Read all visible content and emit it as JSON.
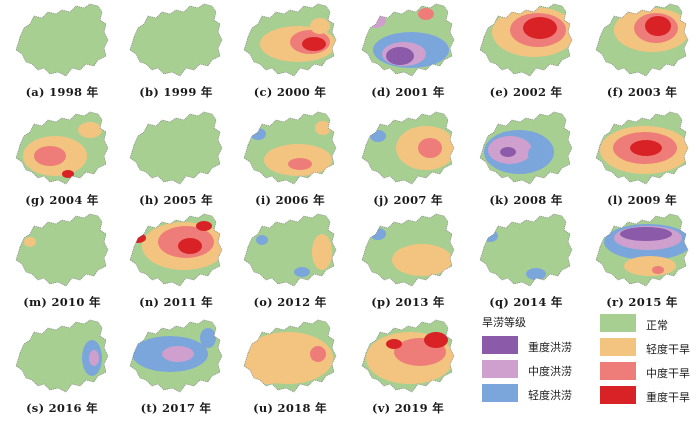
{
  "colors": {
    "severe_flood": "#8b5aa8",
    "moderate_flood": "#cfa0cd",
    "light_flood": "#7aa6dc",
    "normal": "#a8cf92",
    "light_drought": "#f3c47f",
    "moderate_drought": "#ee7d7a",
    "severe_drought": "#d92226"
  },
  "panels": [
    {
      "caption": "(a) 1998 年",
      "patches": []
    },
    {
      "caption": "(b) 1999 年",
      "patches": []
    },
    {
      "caption": "(c) 2000 年",
      "patches": [
        {
          "c": "light_drought",
          "cx": 60,
          "cy": 42,
          "rx": 38,
          "ry": 18
        },
        {
          "c": "moderate_drought",
          "cx": 72,
          "cy": 40,
          "rx": 20,
          "ry": 12
        },
        {
          "c": "severe_drought",
          "cx": 76,
          "cy": 42,
          "rx": 12,
          "ry": 7
        },
        {
          "c": "light_drought",
          "cx": 82,
          "cy": 24,
          "rx": 10,
          "ry": 8
        }
      ]
    },
    {
      "caption": "(d) 2001 年",
      "patches": [
        {
          "c": "light_flood",
          "cx": 55,
          "cy": 48,
          "rx": 38,
          "ry": 18
        },
        {
          "c": "moderate_flood",
          "cx": 48,
          "cy": 52,
          "rx": 22,
          "ry": 12
        },
        {
          "c": "severe_flood",
          "cx": 44,
          "cy": 54,
          "rx": 14,
          "ry": 9
        },
        {
          "c": "moderate_drought",
          "cx": 70,
          "cy": 12,
          "rx": 8,
          "ry": 6
        },
        {
          "c": "moderate_flood",
          "cx": 20,
          "cy": 18,
          "rx": 10,
          "ry": 8
        }
      ]
    },
    {
      "caption": "(e) 2002 年",
      "patches": [
        {
          "c": "light_drought",
          "cx": 60,
          "cy": 30,
          "rx": 42,
          "ry": 25
        },
        {
          "c": "moderate_drought",
          "cx": 64,
          "cy": 28,
          "rx": 28,
          "ry": 17
        },
        {
          "c": "severe_drought",
          "cx": 66,
          "cy": 26,
          "rx": 17,
          "ry": 11
        }
      ]
    },
    {
      "caption": "(f) 2003 年",
      "patches": [
        {
          "c": "light_drought",
          "cx": 62,
          "cy": 28,
          "rx": 38,
          "ry": 22
        },
        {
          "c": "moderate_drought",
          "cx": 66,
          "cy": 26,
          "rx": 22,
          "ry": 15
        },
        {
          "c": "severe_drought",
          "cx": 68,
          "cy": 24,
          "rx": 13,
          "ry": 10
        }
      ]
    },
    {
      "caption": "(g) 2004 年",
      "patches": [
        {
          "c": "light_drought",
          "cx": 45,
          "cy": 46,
          "rx": 32,
          "ry": 20
        },
        {
          "c": "moderate_drought",
          "cx": 40,
          "cy": 46,
          "rx": 16,
          "ry": 10
        },
        {
          "c": "light_drought",
          "cx": 80,
          "cy": 20,
          "rx": 12,
          "ry": 8
        },
        {
          "c": "severe_drought",
          "cx": 58,
          "cy": 64,
          "rx": 6,
          "ry": 4
        }
      ]
    },
    {
      "caption": "(h) 2005 年",
      "patches": []
    },
    {
      "caption": "(i) 2006 年",
      "patches": [
        {
          "c": "light_drought",
          "cx": 60,
          "cy": 50,
          "rx": 34,
          "ry": 16
        },
        {
          "c": "moderate_drought",
          "cx": 62,
          "cy": 54,
          "rx": 12,
          "ry": 6
        },
        {
          "c": "light_flood",
          "cx": 20,
          "cy": 24,
          "rx": 8,
          "ry": 6
        },
        {
          "c": "light_drought",
          "cx": 85,
          "cy": 18,
          "rx": 8,
          "ry": 7
        }
      ]
    },
    {
      "caption": "(j) 2007 年",
      "patches": [
        {
          "c": "light_drought",
          "cx": 70,
          "cy": 38,
          "rx": 30,
          "ry": 22
        },
        {
          "c": "moderate_drought",
          "cx": 74,
          "cy": 38,
          "rx": 12,
          "ry": 10
        },
        {
          "c": "light_flood",
          "cx": 22,
          "cy": 26,
          "rx": 8,
          "ry": 6
        }
      ]
    },
    {
      "caption": "(k) 2008 年",
      "patches": [
        {
          "c": "light_flood",
          "cx": 45,
          "cy": 42,
          "rx": 35,
          "ry": 22
        },
        {
          "c": "moderate_flood",
          "cx": 36,
          "cy": 40,
          "rx": 22,
          "ry": 14
        },
        {
          "c": "severe_flood",
          "cx": 34,
          "cy": 42,
          "rx": 8,
          "ry": 5
        },
        {
          "c": "light_flood",
          "cx": 66,
          "cy": 44,
          "rx": 12,
          "ry": 10
        }
      ]
    },
    {
      "caption": "(l) 2009 年",
      "patches": [
        {
          "c": "light_drought",
          "cx": 55,
          "cy": 40,
          "rx": 45,
          "ry": 24
        },
        {
          "c": "moderate_drought",
          "cx": 55,
          "cy": 38,
          "rx": 32,
          "ry": 16
        },
        {
          "c": "severe_drought",
          "cx": 56,
          "cy": 38,
          "rx": 16,
          "ry": 8
        }
      ]
    },
    {
      "caption": "(m) 2010 年",
      "patches": [
        {
          "c": "light_drought",
          "cx": 20,
          "cy": 30,
          "rx": 6,
          "ry": 5
        }
      ]
    },
    {
      "caption": "(n) 2011 年",
      "patches": [
        {
          "c": "light_drought",
          "cx": 60,
          "cy": 34,
          "rx": 42,
          "ry": 24
        },
        {
          "c": "moderate_drought",
          "cx": 62,
          "cy": 30,
          "rx": 28,
          "ry": 16
        },
        {
          "c": "severe_drought",
          "cx": 66,
          "cy": 34,
          "rx": 12,
          "ry": 8
        },
        {
          "c": "severe_drought",
          "cx": 14,
          "cy": 26,
          "rx": 8,
          "ry": 5
        },
        {
          "c": "severe_drought",
          "cx": 80,
          "cy": 14,
          "rx": 8,
          "ry": 5
        }
      ]
    },
    {
      "caption": "(o) 2012 年",
      "patches": [
        {
          "c": "light_drought",
          "cx": 84,
          "cy": 40,
          "rx": 10,
          "ry": 18
        },
        {
          "c": "light_flood",
          "cx": 24,
          "cy": 28,
          "rx": 6,
          "ry": 5
        },
        {
          "c": "light_flood",
          "cx": 64,
          "cy": 60,
          "rx": 8,
          "ry": 5
        }
      ]
    },
    {
      "caption": "(p) 2013 年",
      "patches": [
        {
          "c": "light_drought",
          "cx": 66,
          "cy": 48,
          "rx": 30,
          "ry": 16
        },
        {
          "c": "light_flood",
          "cx": 22,
          "cy": 22,
          "rx": 8,
          "ry": 6
        }
      ]
    },
    {
      "caption": "(q) 2014 年",
      "patches": [
        {
          "c": "light_flood",
          "cx": 16,
          "cy": 24,
          "rx": 8,
          "ry": 6
        },
        {
          "c": "light_flood",
          "cx": 62,
          "cy": 62,
          "rx": 10,
          "ry": 6
        }
      ]
    },
    {
      "caption": "(r) 2015 年",
      "patches": [
        {
          "c": "light_flood",
          "cx": 58,
          "cy": 30,
          "rx": 44,
          "ry": 18
        },
        {
          "c": "moderate_flood",
          "cx": 58,
          "cy": 26,
          "rx": 34,
          "ry": 12
        },
        {
          "c": "severe_flood",
          "cx": 56,
          "cy": 22,
          "rx": 26,
          "ry": 7
        },
        {
          "c": "light_drought",
          "cx": 60,
          "cy": 54,
          "rx": 26,
          "ry": 10
        },
        {
          "c": "moderate_drought",
          "cx": 68,
          "cy": 58,
          "rx": 6,
          "ry": 4
        }
      ]
    },
    {
      "caption": "(s) 2016 年",
      "patches": [
        {
          "c": "light_flood",
          "cx": 82,
          "cy": 40,
          "rx": 10,
          "ry": 18
        },
        {
          "c": "moderate_flood",
          "cx": 84,
          "cy": 40,
          "rx": 5,
          "ry": 8
        }
      ]
    },
    {
      "caption": "(t) 2017 年",
      "patches": [
        {
          "c": "light_flood",
          "cx": 46,
          "cy": 36,
          "rx": 38,
          "ry": 18
        },
        {
          "c": "moderate_flood",
          "cx": 54,
          "cy": 36,
          "rx": 16,
          "ry": 8
        },
        {
          "c": "light_flood",
          "cx": 84,
          "cy": 20,
          "rx": 8,
          "ry": 10
        }
      ]
    },
    {
      "caption": "(u) 2018 年",
      "patches": [
        {
          "c": "light_drought",
          "cx": 50,
          "cy": 40,
          "rx": 45,
          "ry": 26
        },
        {
          "c": "moderate_drought",
          "cx": 80,
          "cy": 36,
          "rx": 8,
          "ry": 8
        },
        {
          "c": "light_drought",
          "cx": 30,
          "cy": 56,
          "rx": 18,
          "ry": 10
        }
      ]
    },
    {
      "caption": "(v) 2019 年",
      "patches": [
        {
          "c": "light_drought",
          "cx": 54,
          "cy": 40,
          "rx": 44,
          "ry": 26
        },
        {
          "c": "moderate_drought",
          "cx": 64,
          "cy": 34,
          "rx": 26,
          "ry": 14
        },
        {
          "c": "severe_drought",
          "cx": 80,
          "cy": 22,
          "rx": 12,
          "ry": 8
        },
        {
          "c": "severe_drought",
          "cx": 38,
          "cy": 26,
          "rx": 8,
          "ry": 5
        }
      ]
    }
  ],
  "legend": {
    "title": "旱涝等级",
    "items": [
      {
        "key": "severe_flood",
        "label": "重度洪涝"
      },
      {
        "key": "moderate_flood",
        "label": "中度洪涝"
      },
      {
        "key": "light_flood",
        "label": "轻度洪涝"
      },
      {
        "key": "normal",
        "label": "正常"
      },
      {
        "key": "light_drought",
        "label": "轻度干旱"
      },
      {
        "key": "moderate_drought",
        "label": "中度干旱"
      },
      {
        "key": "severe_drought",
        "label": "重度干旱"
      }
    ]
  }
}
